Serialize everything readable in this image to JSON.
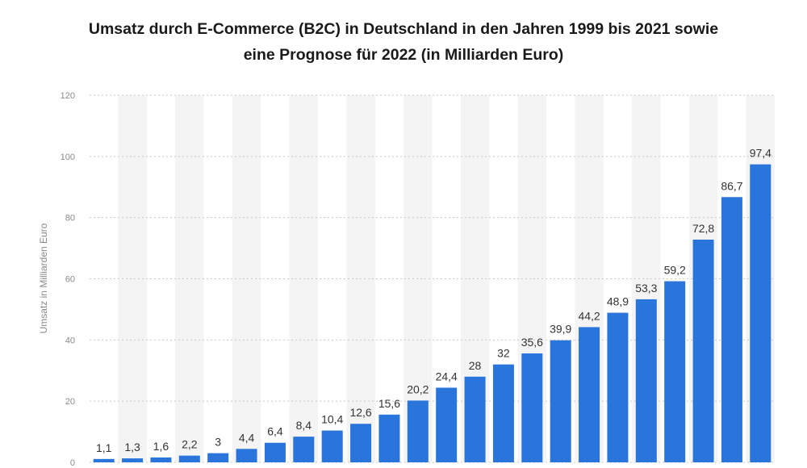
{
  "chart_data": {
    "type": "bar",
    "title_lines": [
      "Umsatz durch E-Commerce (B2C) in Deutschland in den Jahren 1999 bis 2021 sowie",
      "eine Prognose für 2022 (in Milliarden Euro)"
    ],
    "ylabel": "Umsatz in Milliarden Euro",
    "ylim": [
      0,
      120
    ],
    "yticks": [
      0,
      20,
      40,
      60,
      80,
      100,
      120
    ],
    "values": [
      1.1,
      1.3,
      1.6,
      2.2,
      3,
      4.4,
      6.4,
      8.4,
      10.4,
      12.6,
      15.6,
      20.2,
      24.4,
      28,
      32,
      35.6,
      39.9,
      44.2,
      48.9,
      53.3,
      59.2,
      72.8,
      86.7,
      97.4
    ],
    "value_labels": [
      "1,1",
      "1,3",
      "1,6",
      "2,2",
      "3",
      "4,4",
      "6,4",
      "8,4",
      "10,4",
      "12,6",
      "15,6",
      "20,2",
      "24,4",
      "28",
      "32",
      "35,6",
      "39,9",
      "44,2",
      "48,9",
      "53,3",
      "59,2",
      "72,8",
      "86,7",
      "97,4"
    ],
    "bar_color": "#2a75db",
    "band_color": "#f4f4f4",
    "grid": true,
    "grid_style": "dotted"
  }
}
